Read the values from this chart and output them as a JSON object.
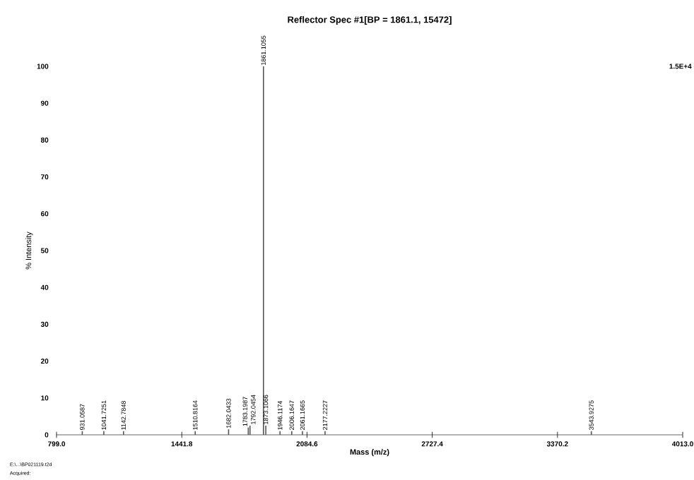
{
  "chart_data": {
    "type": "bar",
    "title": "Reflector Spec #1[BP = 1861.1, 15472]",
    "xlabel": "Mass (m/z)",
    "ylabel": "% Intensity",
    "color": "#555555",
    "x": [
      931.0587,
      1041.7251,
      1142.7848,
      1510.8164,
      1682.0433,
      1783.1987,
      1792.0454,
      1861.1055,
      1873.1066,
      1946.1174,
      2006.1647,
      2061.1665,
      2177.2227,
      3543.9275
    ],
    "values": [
      1,
      1,
      1,
      1,
      1.5,
      2,
      2.5,
      100,
      2.5,
      1,
      1,
      1,
      1,
      1
    ],
    "xlim": [
      799.0,
      4013.0
    ],
    "xticks": [
      {
        "value": 799.0,
        "label": "799.0"
      },
      {
        "value": 1441.8,
        "label": "1441.8"
      },
      {
        "value": 2084.6,
        "label": "2084.6"
      },
      {
        "value": 2727.4,
        "label": "2727.4"
      },
      {
        "value": 3370.2,
        "label": "3370.2"
      },
      {
        "value": 4013.0,
        "label": "4013.0"
      }
    ],
    "ylim": [
      0,
      100
    ],
    "yticks": [
      0,
      10,
      20,
      30,
      40,
      50,
      60,
      70,
      80,
      90,
      100
    ],
    "annotations": [
      "1.5E+4",
      "E:\\...\\BP021119.t2d",
      "Acquired:",
      {
        "text": "931.0587",
        "x": 931.0587,
        "y": 1
      },
      {
        "text": "1041.7251",
        "x": 1041.7251,
        "y": 1
      },
      {
        "text": "1142.7848",
        "x": 1142.7848,
        "y": 1
      },
      {
        "text": "1510.8164",
        "x": 1510.8164,
        "y": 1
      },
      {
        "text": "1682.0433",
        "x": 1682.0433,
        "y": 1.5
      },
      {
        "text": "1783.1987",
        "x": 1783.1987,
        "y": 2
      },
      {
        "text": "1792.0454",
        "x": 1792.0454,
        "y": 2.5
      },
      {
        "text": "1861.1055",
        "x": 1861.1055,
        "y": 100
      },
      {
        "text": "1873.1066",
        "x": 1873.1066,
        "y": 2.5
      },
      {
        "text": "1946.1174",
        "x": 1946.1174,
        "y": 1
      },
      {
        "text": "2006.1647",
        "x": 2006.1647,
        "y": 1
      },
      {
        "text": "2061.1665",
        "x": 2061.1665,
        "y": 1
      },
      {
        "text": "2177.2227",
        "x": 2177.2227,
        "y": 1
      },
      {
        "text": "3543.9275",
        "x": 3543.9275,
        "y": 1
      }
    ]
  }
}
